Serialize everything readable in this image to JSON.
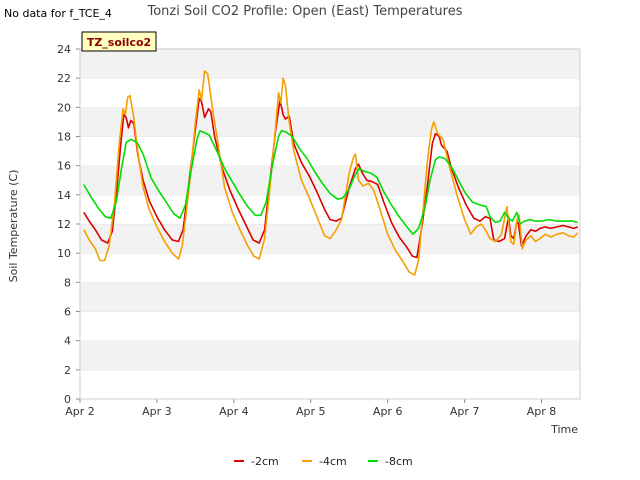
{
  "no_data_text": "No data for f_TCE_4",
  "chart_data": {
    "type": "line",
    "title": "Tonzi Soil CO2 Profile: Open (East) Temperatures",
    "xlabel": "Time",
    "ylabel": "Soil Temperature (C)",
    "ylim": [
      0,
      24
    ],
    "yticks": [
      0,
      2,
      4,
      6,
      8,
      10,
      12,
      14,
      16,
      18,
      20,
      22,
      24
    ],
    "xlim": [
      0,
      6.5
    ],
    "xticks": [
      {
        "value": 0,
        "label": "Apr 2"
      },
      {
        "value": 1,
        "label": "Apr 3"
      },
      {
        "value": 2,
        "label": "Apr 4"
      },
      {
        "value": 3,
        "label": "Apr 5"
      },
      {
        "value": 4,
        "label": "Apr 6"
      },
      {
        "value": 5,
        "label": "Apr 7"
      },
      {
        "value": 6,
        "label": "Apr 8"
      }
    ],
    "grid": "horizontal bands",
    "tag_label": "TZ_soilco2",
    "legend_position": "bottom-center",
    "series": [
      {
        "name": "-2cm",
        "color": "#dd0000",
        "points": [
          [
            0.05,
            12.8
          ],
          [
            0.12,
            12.2
          ],
          [
            0.2,
            11.6
          ],
          [
            0.28,
            10.9
          ],
          [
            0.36,
            10.7
          ],
          [
            0.42,
            11.5
          ],
          [
            0.48,
            14.5
          ],
          [
            0.53,
            17.5
          ],
          [
            0.57,
            19.5
          ],
          [
            0.6,
            19.3
          ],
          [
            0.63,
            18.6
          ],
          [
            0.66,
            19.1
          ],
          [
            0.7,
            18.9
          ],
          [
            0.75,
            16.8
          ],
          [
            0.82,
            15.0
          ],
          [
            0.9,
            13.6
          ],
          [
            1.0,
            12.5
          ],
          [
            1.1,
            11.6
          ],
          [
            1.2,
            10.9
          ],
          [
            1.28,
            10.8
          ],
          [
            1.34,
            11.6
          ],
          [
            1.42,
            15.0
          ],
          [
            1.5,
            18.5
          ],
          [
            1.55,
            20.6
          ],
          [
            1.58,
            20.4
          ],
          [
            1.62,
            19.3
          ],
          [
            1.67,
            19.9
          ],
          [
            1.7,
            19.7
          ],
          [
            1.75,
            18.0
          ],
          [
            1.85,
            15.8
          ],
          [
            1.95,
            14.3
          ],
          [
            2.05,
            13.1
          ],
          [
            2.15,
            12.0
          ],
          [
            2.25,
            10.9
          ],
          [
            2.33,
            10.7
          ],
          [
            2.4,
            11.6
          ],
          [
            2.47,
            15.0
          ],
          [
            2.54,
            18.3
          ],
          [
            2.6,
            20.5
          ],
          [
            2.64,
            19.5
          ],
          [
            2.67,
            19.2
          ],
          [
            2.72,
            19.4
          ],
          [
            2.78,
            17.5
          ],
          [
            2.88,
            16.2
          ],
          [
            2.98,
            15.3
          ],
          [
            3.08,
            14.2
          ],
          [
            3.18,
            13.0
          ],
          [
            3.25,
            12.3
          ],
          [
            3.33,
            12.2
          ],
          [
            3.4,
            12.4
          ],
          [
            3.5,
            14.5
          ],
          [
            3.58,
            15.8
          ],
          [
            3.62,
            16.1
          ],
          [
            3.67,
            15.5
          ],
          [
            3.73,
            15.0
          ],
          [
            3.8,
            14.9
          ],
          [
            3.87,
            14.7
          ],
          [
            3.95,
            13.5
          ],
          [
            4.05,
            12.1
          ],
          [
            4.15,
            11.1
          ],
          [
            4.25,
            10.4
          ],
          [
            4.32,
            9.8
          ],
          [
            4.38,
            9.7
          ],
          [
            4.45,
            12.0
          ],
          [
            4.52,
            14.8
          ],
          [
            4.58,
            17.5
          ],
          [
            4.62,
            18.2
          ],
          [
            4.67,
            18.0
          ],
          [
            4.7,
            17.4
          ],
          [
            4.77,
            17.0
          ],
          [
            4.83,
            15.8
          ],
          [
            4.92,
            14.5
          ],
          [
            5.02,
            13.3
          ],
          [
            5.12,
            12.4
          ],
          [
            5.2,
            12.2
          ],
          [
            5.27,
            12.5
          ],
          [
            5.33,
            12.4
          ],
          [
            5.38,
            10.9
          ],
          [
            5.45,
            10.8
          ],
          [
            5.52,
            11.0
          ],
          [
            5.57,
            12.5
          ],
          [
            5.6,
            11.2
          ],
          [
            5.64,
            11.0
          ],
          [
            5.68,
            12.2
          ],
          [
            5.7,
            12.0
          ],
          [
            5.74,
            10.5
          ],
          [
            5.8,
            11.2
          ],
          [
            5.86,
            11.6
          ],
          [
            5.92,
            11.5
          ],
          [
            5.98,
            11.7
          ],
          [
            6.05,
            11.8
          ],
          [
            6.12,
            11.7
          ],
          [
            6.2,
            11.8
          ],
          [
            6.28,
            11.9
          ],
          [
            6.35,
            11.8
          ],
          [
            6.42,
            11.7
          ],
          [
            6.47,
            11.8
          ]
        ]
      },
      {
        "name": "-4cm",
        "color": "#f5a000",
        "points": [
          [
            0.05,
            11.6
          ],
          [
            0.12,
            10.9
          ],
          [
            0.2,
            10.3
          ],
          [
            0.26,
            9.5
          ],
          [
            0.32,
            9.5
          ],
          [
            0.38,
            10.5
          ],
          [
            0.45,
            13.5
          ],
          [
            0.51,
            17.5
          ],
          [
            0.56,
            19.9
          ],
          [
            0.59,
            19.5
          ],
          [
            0.62,
            20.7
          ],
          [
            0.65,
            20.8
          ],
          [
            0.7,
            19.3
          ],
          [
            0.75,
            17.0
          ],
          [
            0.82,
            14.5
          ],
          [
            0.9,
            13.0
          ],
          [
            1.0,
            11.8
          ],
          [
            1.1,
            10.8
          ],
          [
            1.2,
            10.0
          ],
          [
            1.28,
            9.6
          ],
          [
            1.33,
            10.5
          ],
          [
            1.42,
            14.5
          ],
          [
            1.5,
            19.0
          ],
          [
            1.55,
            21.2
          ],
          [
            1.58,
            20.5
          ],
          [
            1.62,
            22.5
          ],
          [
            1.66,
            22.3
          ],
          [
            1.72,
            20.0
          ],
          [
            1.78,
            18.0
          ],
          [
            1.88,
            14.5
          ],
          [
            1.98,
            12.8
          ],
          [
            2.08,
            11.6
          ],
          [
            2.18,
            10.5
          ],
          [
            2.26,
            9.8
          ],
          [
            2.33,
            9.6
          ],
          [
            2.4,
            11.0
          ],
          [
            2.47,
            14.5
          ],
          [
            2.54,
            18.5
          ],
          [
            2.58,
            21.0
          ],
          [
            2.61,
            20.3
          ],
          [
            2.64,
            22.0
          ],
          [
            2.67,
            21.5
          ],
          [
            2.72,
            19.0
          ],
          [
            2.78,
            17.0
          ],
          [
            2.88,
            15.0
          ],
          [
            2.98,
            13.8
          ],
          [
            3.08,
            12.5
          ],
          [
            3.18,
            11.2
          ],
          [
            3.25,
            11.0
          ],
          [
            3.32,
            11.5
          ],
          [
            3.4,
            12.3
          ],
          [
            3.5,
            15.5
          ],
          [
            3.55,
            16.5
          ],
          [
            3.58,
            16.8
          ],
          [
            3.62,
            15.0
          ],
          [
            3.68,
            14.6
          ],
          [
            3.75,
            14.8
          ],
          [
            3.82,
            14.3
          ],
          [
            3.9,
            13.0
          ],
          [
            4.0,
            11.3
          ],
          [
            4.1,
            10.2
          ],
          [
            4.2,
            9.4
          ],
          [
            4.28,
            8.7
          ],
          [
            4.35,
            8.5
          ],
          [
            4.4,
            9.5
          ],
          [
            4.46,
            13.0
          ],
          [
            4.52,
            16.5
          ],
          [
            4.57,
            18.5
          ],
          [
            4.6,
            19.0
          ],
          [
            4.65,
            18.2
          ],
          [
            4.72,
            17.8
          ],
          [
            4.8,
            16.0
          ],
          [
            4.9,
            14.0
          ],
          [
            5.0,
            12.3
          ],
          [
            5.08,
            11.3
          ],
          [
            5.15,
            11.8
          ],
          [
            5.22,
            12.0
          ],
          [
            5.28,
            11.5
          ],
          [
            5.33,
            11.0
          ],
          [
            5.4,
            10.8
          ],
          [
            5.48,
            11.3
          ],
          [
            5.55,
            13.2
          ],
          [
            5.6,
            10.8
          ],
          [
            5.64,
            10.6
          ],
          [
            5.68,
            12.3
          ],
          [
            5.71,
            12.6
          ],
          [
            5.75,
            10.3
          ],
          [
            5.8,
            10.9
          ],
          [
            5.86,
            11.2
          ],
          [
            5.92,
            10.8
          ],
          [
            5.98,
            11.0
          ],
          [
            6.05,
            11.3
          ],
          [
            6.12,
            11.1
          ],
          [
            6.2,
            11.3
          ],
          [
            6.28,
            11.4
          ],
          [
            6.35,
            11.2
          ],
          [
            6.42,
            11.1
          ],
          [
            6.47,
            11.4
          ]
        ]
      },
      {
        "name": "-8cm",
        "color": "#00dd00",
        "points": [
          [
            0.05,
            14.7
          ],
          [
            0.15,
            13.8
          ],
          [
            0.25,
            13.0
          ],
          [
            0.33,
            12.5
          ],
          [
            0.4,
            12.4
          ],
          [
            0.47,
            13.5
          ],
          [
            0.54,
            15.8
          ],
          [
            0.6,
            17.6
          ],
          [
            0.66,
            17.8
          ],
          [
            0.74,
            17.6
          ],
          [
            0.82,
            16.8
          ],
          [
            0.92,
            15.2
          ],
          [
            1.02,
            14.3
          ],
          [
            1.12,
            13.5
          ],
          [
            1.22,
            12.7
          ],
          [
            1.3,
            12.4
          ],
          [
            1.37,
            13.3
          ],
          [
            1.45,
            15.8
          ],
          [
            1.52,
            17.8
          ],
          [
            1.56,
            18.4
          ],
          [
            1.6,
            18.3
          ],
          [
            1.68,
            18.1
          ],
          [
            1.78,
            17.0
          ],
          [
            1.88,
            15.8
          ],
          [
            1.98,
            14.9
          ],
          [
            2.08,
            14.0
          ],
          [
            2.18,
            13.2
          ],
          [
            2.28,
            12.6
          ],
          [
            2.35,
            12.6
          ],
          [
            2.42,
            13.5
          ],
          [
            2.5,
            16.0
          ],
          [
            2.58,
            18.0
          ],
          [
            2.62,
            18.4
          ],
          [
            2.68,
            18.3
          ],
          [
            2.76,
            18.0
          ],
          [
            2.85,
            17.2
          ],
          [
            2.95,
            16.5
          ],
          [
            3.05,
            15.6
          ],
          [
            3.15,
            14.8
          ],
          [
            3.25,
            14.1
          ],
          [
            3.35,
            13.7
          ],
          [
            3.42,
            13.8
          ],
          [
            3.5,
            14.4
          ],
          [
            3.57,
            15.3
          ],
          [
            3.63,
            15.8
          ],
          [
            3.7,
            15.6
          ],
          [
            3.78,
            15.5
          ],
          [
            3.86,
            15.2
          ],
          [
            3.95,
            14.2
          ],
          [
            4.05,
            13.3
          ],
          [
            4.15,
            12.5
          ],
          [
            4.25,
            11.8
          ],
          [
            4.33,
            11.3
          ],
          [
            4.4,
            11.7
          ],
          [
            4.48,
            13.0
          ],
          [
            4.55,
            15.0
          ],
          [
            4.62,
            16.4
          ],
          [
            4.67,
            16.6
          ],
          [
            4.74,
            16.5
          ],
          [
            4.82,
            16.0
          ],
          [
            4.9,
            15.2
          ],
          [
            5.0,
            14.2
          ],
          [
            5.1,
            13.5
          ],
          [
            5.2,
            13.3
          ],
          [
            5.28,
            13.2
          ],
          [
            5.33,
            12.5
          ],
          [
            5.4,
            12.1
          ],
          [
            5.46,
            12.2
          ],
          [
            5.52,
            12.8
          ],
          [
            5.57,
            12.4
          ],
          [
            5.62,
            12.2
          ],
          [
            5.68,
            12.8
          ],
          [
            5.72,
            12.0
          ],
          [
            5.78,
            12.2
          ],
          [
            5.85,
            12.3
          ],
          [
            5.92,
            12.2
          ],
          [
            6.0,
            12.2
          ],
          [
            6.1,
            12.3
          ],
          [
            6.2,
            12.2
          ],
          [
            6.3,
            12.2
          ],
          [
            6.4,
            12.2
          ],
          [
            6.47,
            12.1
          ]
        ]
      }
    ]
  }
}
